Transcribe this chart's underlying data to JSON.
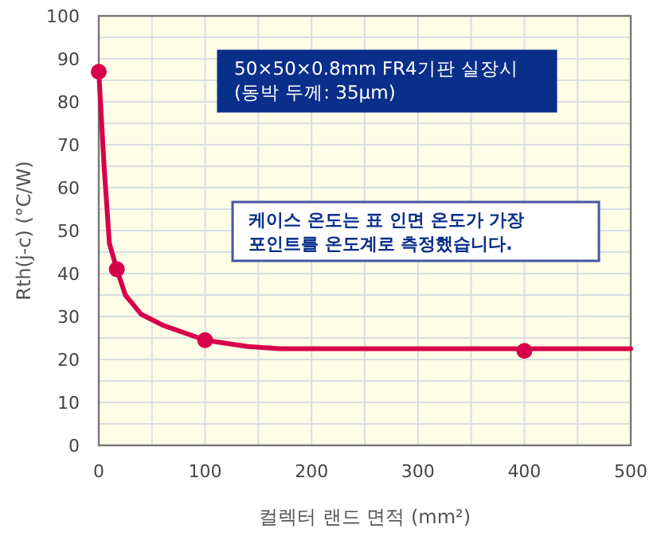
{
  "chart_data": {
    "type": "line",
    "xlabel": "컬렉터 랜드 면적 (mm²)",
    "ylabel": "Rth(j-c) (°C/W)",
    "xlim": [
      0,
      500
    ],
    "ylim": [
      0,
      100
    ],
    "xticks": [
      0,
      {
        "value": 50,
        "label": null
      },
      100,
      {
        "value": 150,
        "label": null
      },
      200,
      {
        "value": 250,
        "label": null
      },
      300,
      {
        "value": 350,
        "label": null
      },
      400,
      {
        "value": 450,
        "label": null
      },
      500
    ],
    "yticks": [
      0,
      {
        "value": 5,
        "label": null
      },
      10,
      {
        "value": 15,
        "label": null
      },
      20,
      {
        "value": 25,
        "label": null
      },
      30,
      {
        "value": 35,
        "label": null
      },
      40,
      {
        "value": 45,
        "label": null
      },
      50,
      {
        "value": 55,
        "label": null
      },
      60,
      {
        "value": 65,
        "label": null
      },
      70,
      {
        "value": 75,
        "label": null
      },
      80,
      {
        "value": 85,
        "label": null
      },
      90,
      {
        "value": 95,
        "label": null
      },
      100
    ],
    "grid": true,
    "series": [
      {
        "color": "#d6004b",
        "marker": "none",
        "x": [
          0,
          5,
          10,
          17,
          25,
          40,
          60,
          100,
          140,
          170,
          500
        ],
        "values": [
          87,
          65,
          47,
          41,
          35,
          30.5,
          28,
          24.5,
          23,
          22.5,
          22.5
        ]
      },
      {
        "type": "scatter",
        "color": "#d6004b",
        "marker": "circle",
        "x": [
          0,
          17,
          100,
          400
        ],
        "values": [
          87,
          41,
          24.5,
          22
        ]
      }
    ],
    "annotations": [
      "50×50×0.8mm FR4기판 실장시\n(동박 두께: 35μm)",
      "케이스 온도는 표 인면 온도가 가장\n포인트를 온도계로 측정했습니다."
    ]
  }
}
